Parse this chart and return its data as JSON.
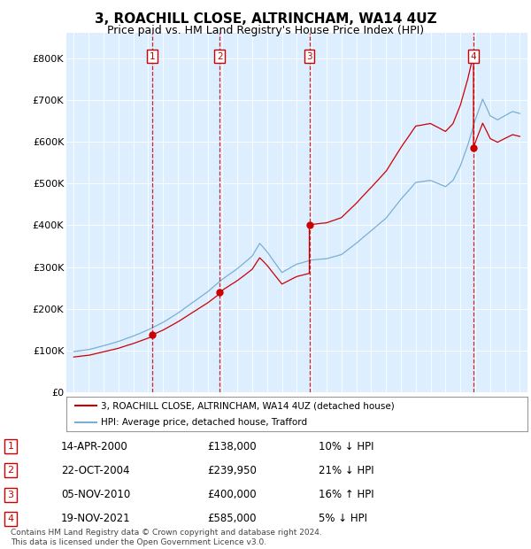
{
  "title": "3, ROACHILL CLOSE, ALTRINCHAM, WA14 4UZ",
  "subtitle": "Price paid vs. HM Land Registry's House Price Index (HPI)",
  "background_color": "#ffffff",
  "plot_bg_color": "#ddeeff",
  "legend_label_red": "3, ROACHILL CLOSE, ALTRINCHAM, WA14 4UZ (detached house)",
  "legend_label_blue": "HPI: Average price, detached house, Trafford",
  "footer": "Contains HM Land Registry data © Crown copyright and database right 2024.\nThis data is licensed under the Open Government Licence v3.0.",
  "transactions": [
    {
      "num": 1,
      "date": "14-APR-2000",
      "price": 138000,
      "pct": "10%",
      "dir": "↓",
      "year_x": 2000.28,
      "linestyle": "--"
    },
    {
      "num": 2,
      "date": "22-OCT-2004",
      "price": 239950,
      "pct": "21%",
      "dir": "↓",
      "year_x": 2004.81,
      "linestyle": "--"
    },
    {
      "num": 3,
      "date": "05-NOV-2010",
      "price": 400000,
      "pct": "16%",
      "dir": "↑",
      "year_x": 2010.84,
      "linestyle": "--"
    },
    {
      "num": 4,
      "date": "19-NOV-2021",
      "price": 585000,
      "pct": "5%",
      "dir": "↓",
      "year_x": 2021.88,
      "linestyle": "--"
    }
  ],
  "ylim": [
    0,
    860000
  ],
  "yticks": [
    0,
    100000,
    200000,
    300000,
    400000,
    500000,
    600000,
    700000,
    800000
  ],
  "ytick_labels": [
    "£0",
    "£100K",
    "£200K",
    "£300K",
    "£400K",
    "£500K",
    "£600K",
    "£700K",
    "£800K"
  ],
  "xlim": [
    1994.5,
    2025.5
  ],
  "xticks": [
    1995,
    1996,
    1997,
    1998,
    1999,
    2000,
    2001,
    2002,
    2003,
    2004,
    2005,
    2006,
    2007,
    2008,
    2009,
    2010,
    2011,
    2012,
    2013,
    2014,
    2015,
    2016,
    2017,
    2018,
    2019,
    2020,
    2021,
    2022,
    2023,
    2024,
    2025
  ],
  "red_color": "#cc0000",
  "blue_color": "#7aafd4",
  "dashed_color": "#cc0000",
  "sale_points": [
    [
      2000.28,
      138000
    ],
    [
      2004.81,
      239950
    ],
    [
      2010.84,
      400000
    ],
    [
      2021.88,
      585000
    ]
  ]
}
